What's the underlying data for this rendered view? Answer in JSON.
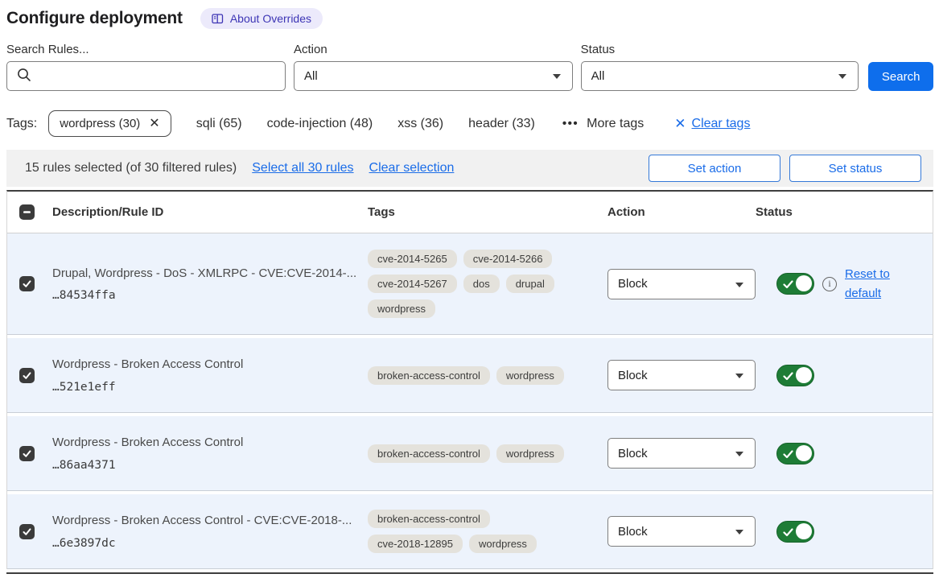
{
  "page": {
    "title": "Configure deployment",
    "about_badge": "About Overrides"
  },
  "filters": {
    "search_label": "Search Rules...",
    "search_value": "",
    "action_label": "Action",
    "action_value": "All",
    "status_label": "Status",
    "status_value": "All",
    "search_button": "Search"
  },
  "tags_bar": {
    "label": "Tags:",
    "selected_tag": "wordpress (30)",
    "tags": [
      "sqli (65)",
      "code-injection (48)",
      "xss (36)",
      "header (33)"
    ],
    "more_tags": "More tags",
    "clear_tags": "Clear tags"
  },
  "selection_bar": {
    "summary": "15 rules selected (of 30 filtered rules)",
    "select_all": "Select all 30 rules",
    "clear_selection": "Clear selection",
    "set_action": "Set action",
    "set_status": "Set status"
  },
  "table": {
    "columns": [
      "Description/Rule ID",
      "Tags",
      "Action",
      "Status"
    ],
    "header_checkbox_state": "indeterminate",
    "rows": [
      {
        "checked": true,
        "description": "Drupal, Wordpress - DoS - XMLRPC - CVE:CVE-2014-...",
        "rule_id": "…84534ffa",
        "tags": [
          "cve-2014-5265",
          "cve-2014-5266",
          "cve-2014-5267",
          "dos",
          "drupal",
          "wordpress"
        ],
        "action": "Block",
        "status_on": true,
        "reset_link": "Reset to default"
      },
      {
        "checked": true,
        "description": "Wordpress - Broken Access Control",
        "rule_id": "…521e1eff",
        "tags": [
          "broken-access-control",
          "wordpress"
        ],
        "action": "Block",
        "status_on": true
      },
      {
        "checked": true,
        "description": "Wordpress - Broken Access Control",
        "rule_id": "…86aa4371",
        "tags": [
          "broken-access-control",
          "wordpress"
        ],
        "action": "Block",
        "status_on": true
      },
      {
        "checked": true,
        "description": "Wordpress - Broken Access Control - CVE:CVE-2018-...",
        "rule_id": "…6e3897dc",
        "tags": [
          "broken-access-control",
          "cve-2018-12895",
          "wordpress"
        ],
        "action": "Block",
        "status_on": true
      }
    ]
  },
  "colors": {
    "accent_blue": "#1a6ce8",
    "search_button_blue": "#0e6eec",
    "toggle_green": "#1e7c36",
    "badge_bg": "#eceafb",
    "badge_text": "#3d35b5",
    "row_bg": "#edf3fc",
    "pill_bg": "#e4e2dc",
    "selection_bar_bg": "#f1f1f1"
  }
}
